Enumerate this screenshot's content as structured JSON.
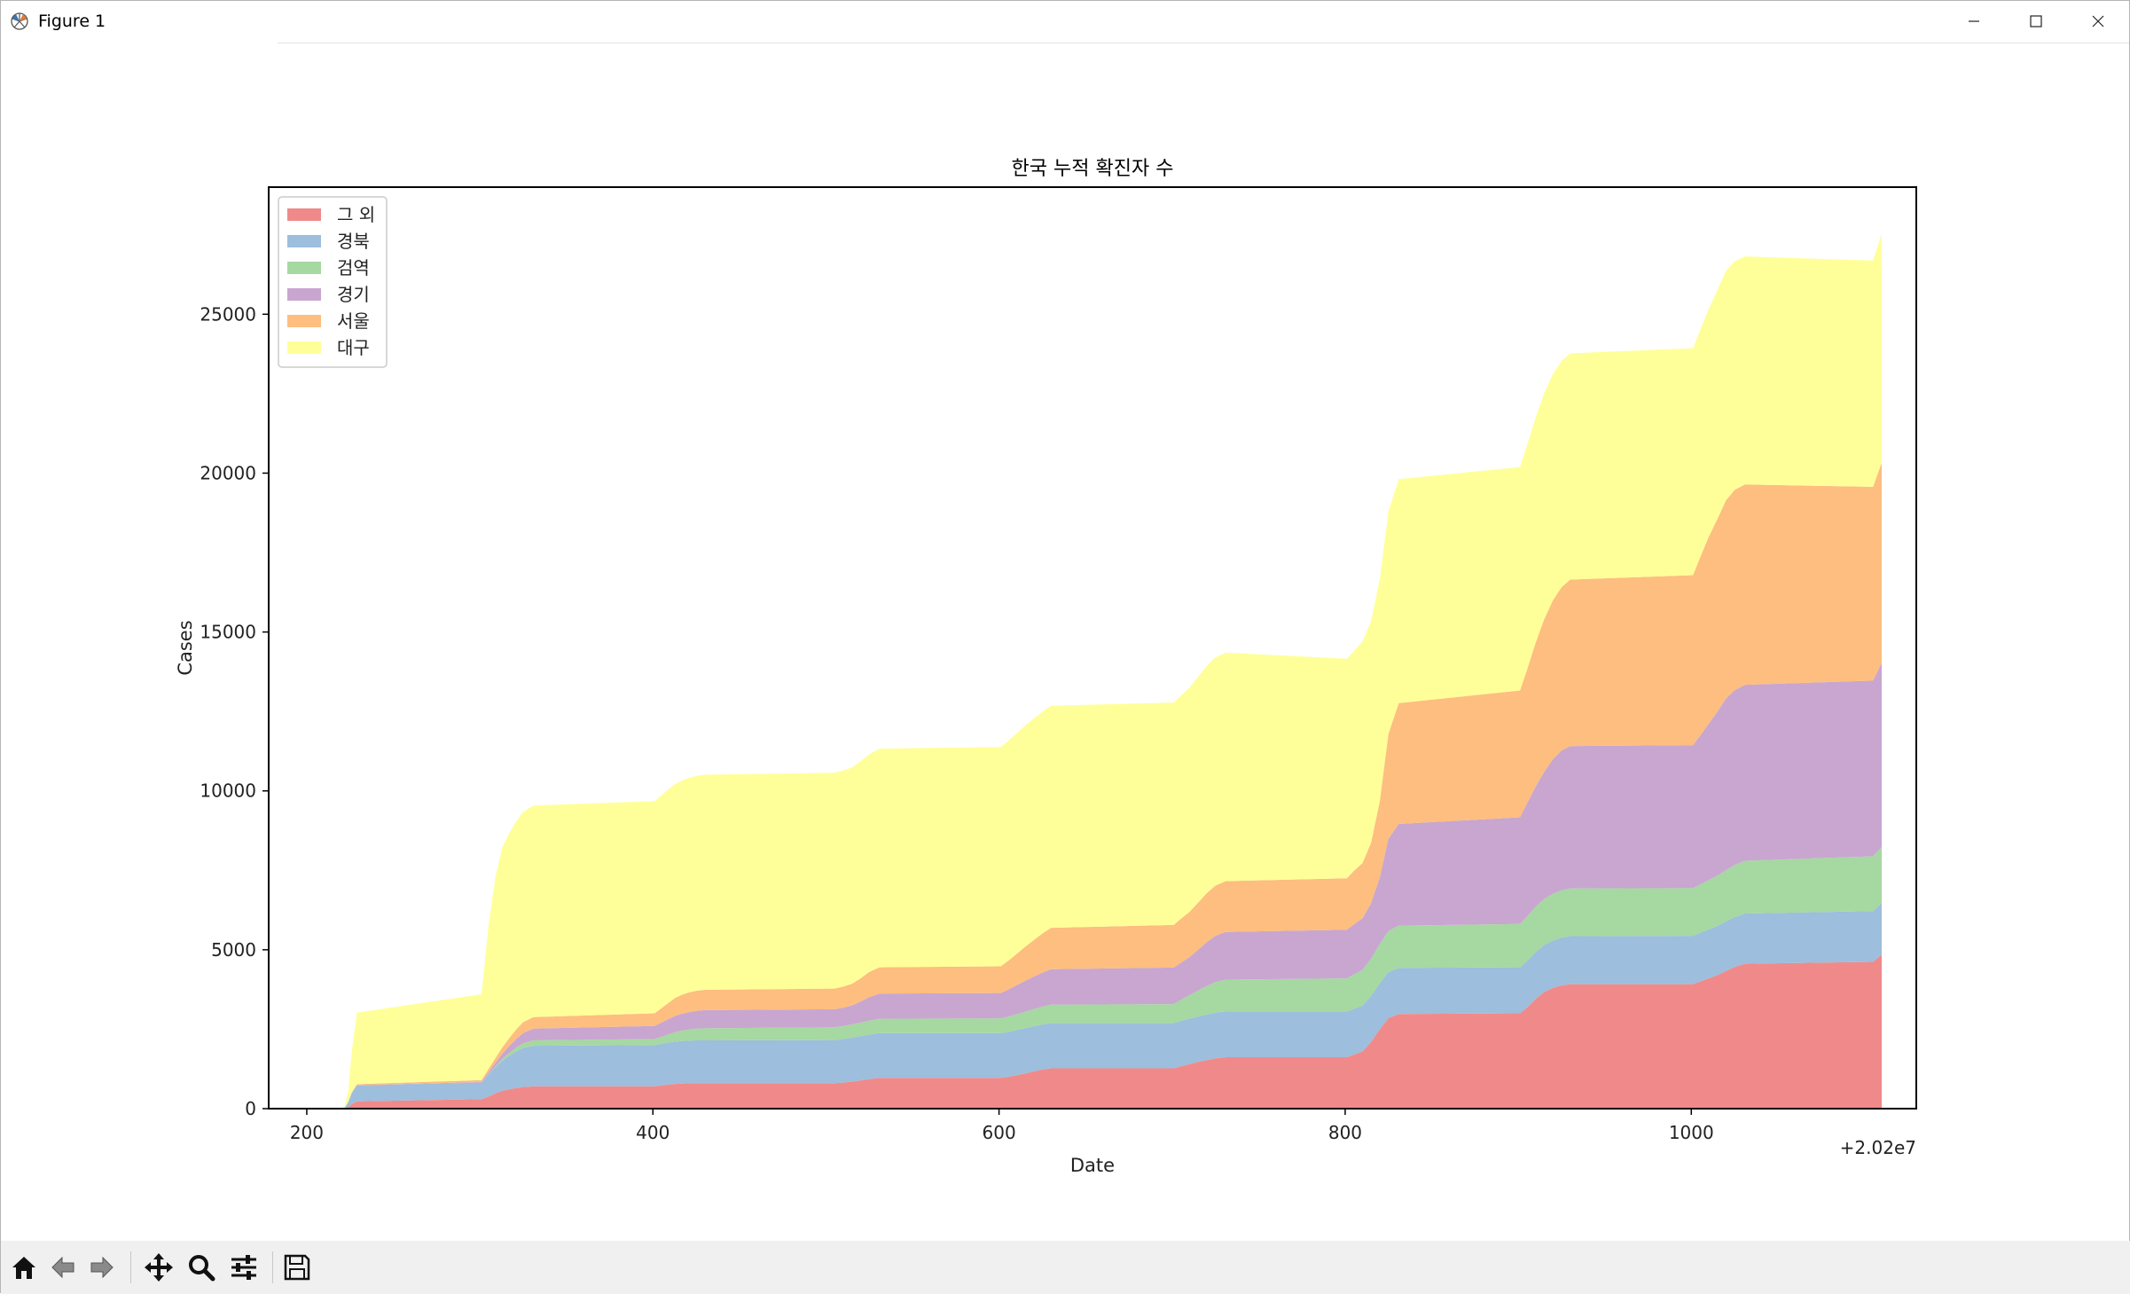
{
  "window": {
    "title": "Figure 1",
    "icons": {
      "app": "matplotlib-icon",
      "minimize": "minimize-icon",
      "maximize": "maximize-icon",
      "close": "close-icon"
    }
  },
  "toolbar": {
    "buttons": [
      {
        "name": "home-button",
        "icon": "home-icon"
      },
      {
        "name": "back-button",
        "icon": "arrow-left-icon"
      },
      {
        "name": "forward-button",
        "icon": "arrow-right-icon"
      },
      {
        "name": "pan-button",
        "icon": "move-icon"
      },
      {
        "name": "zoom-button",
        "icon": "magnifier-icon"
      },
      {
        "name": "configure-subplots-button",
        "icon": "sliders-icon"
      },
      {
        "name": "save-button",
        "icon": "floppy-disk-icon"
      }
    ]
  },
  "chart_data": {
    "type": "area",
    "stacked": true,
    "title": "한국 누적 확진자 수",
    "xlabel": "Date",
    "ylabel": "Cases",
    "x_offset_label": "+2.02e7",
    "xlim": [
      178,
      1130
    ],
    "ylim": [
      0,
      29000
    ],
    "xticks": [
      200,
      400,
      600,
      800,
      1000
    ],
    "xtick_labels": [
      "200",
      "400",
      "600",
      "800",
      "1000"
    ],
    "yticks": [
      0,
      5000,
      10000,
      15000,
      20000,
      25000
    ],
    "ytick_labels": [
      "0",
      "5000",
      "10000",
      "15000",
      "20000",
      "25000"
    ],
    "grid": false,
    "legend_position": "upper-left",
    "x": [
      218,
      220,
      222,
      224,
      226,
      229,
      301,
      305,
      309,
      313,
      317,
      321,
      325,
      331,
      401,
      405,
      409,
      413,
      417,
      421,
      425,
      430,
      505,
      510,
      515,
      520,
      525,
      531,
      601,
      605,
      610,
      615,
      620,
      625,
      630,
      701,
      705,
      710,
      715,
      720,
      725,
      731,
      801,
      805,
      810,
      815,
      820,
      825,
      831,
      901,
      905,
      910,
      915,
      920,
      925,
      930,
      1001,
      1005,
      1010,
      1015,
      1020,
      1025,
      1031,
      1105,
      1110
    ],
    "series": [
      {
        "name": "그 외",
        "color": "#f08a8a",
        "values": [
          0,
          2,
          10,
          60,
          140,
          230,
          300,
          380,
          480,
          560,
          610,
          650,
          680,
          700,
          700,
          730,
          760,
          780,
          790,
          800,
          800,
          800,
          800,
          820,
          850,
          890,
          930,
          970,
          970,
          1000,
          1050,
          1110,
          1170,
          1230,
          1270,
          1270,
          1330,
          1400,
          1470,
          1530,
          1580,
          1620,
          1620,
          1700,
          1800,
          2100,
          2500,
          2850,
          2980,
          3000,
          3180,
          3450,
          3670,
          3800,
          3880,
          3920,
          3920,
          4000,
          4100,
          4200,
          4330,
          4460,
          4560,
          4620,
          4850
        ]
      },
      {
        "name": "경북",
        "color": "#9dbedc",
        "values": [
          0,
          3,
          20,
          150,
          350,
          500,
          520,
          700,
          820,
          950,
          1050,
          1150,
          1230,
          1280,
          1300,
          1310,
          1320,
          1330,
          1340,
          1340,
          1350,
          1350,
          1360,
          1370,
          1380,
          1390,
          1400,
          1410,
          1410,
          1410,
          1420,
          1420,
          1420,
          1420,
          1420,
          1420,
          1430,
          1430,
          1430,
          1430,
          1440,
          1440,
          1440,
          1440,
          1440,
          1450,
          1450,
          1450,
          1450,
          1450,
          1460,
          1470,
          1480,
          1490,
          1500,
          1510,
          1520,
          1530,
          1540,
          1550,
          1560,
          1570,
          1580,
          1600,
          1620
        ]
      },
      {
        "name": "검역",
        "color": "#a6d8a1",
        "values": [
          0,
          0,
          0,
          0,
          0,
          0,
          0,
          10,
          30,
          60,
          90,
          120,
          150,
          170,
          190,
          220,
          260,
          300,
          330,
          350,
          370,
          380,
          400,
          410,
          420,
          430,
          440,
          450,
          460,
          480,
          500,
          520,
          540,
          560,
          580,
          600,
          660,
          740,
          820,
          900,
          960,
          1000,
          1040,
          1080,
          1120,
          1170,
          1230,
          1290,
          1330,
          1360,
          1400,
          1430,
          1450,
          1470,
          1490,
          1500,
          1500,
          1520,
          1550,
          1580,
          1610,
          1640,
          1660,
          1720,
          1760
        ]
      },
      {
        "name": "경기",
        "color": "#c8a6d0",
        "values": [
          0,
          0,
          0,
          0,
          5,
          10,
          20,
          60,
          110,
          160,
          220,
          270,
          320,
          370,
          410,
          450,
          480,
          510,
          530,
          550,
          560,
          570,
          570,
          580,
          600,
          660,
          740,
          790,
          800,
          850,
          910,
          970,
          1020,
          1070,
          1120,
          1150,
          1170,
          1200,
          1280,
          1380,
          1460,
          1500,
          1530,
          1580,
          1630,
          1750,
          2100,
          2900,
          3200,
          3360,
          3560,
          3780,
          4000,
          4230,
          4400,
          4480,
          4500,
          4680,
          4920,
          5160,
          5400,
          5500,
          5540,
          5530,
          5800
        ]
      },
      {
        "name": "서울",
        "color": "#fdbe7f",
        "values": [
          0,
          0,
          0,
          5,
          15,
          30,
          60,
          100,
          150,
          200,
          250,
          300,
          340,
          360,
          400,
          450,
          510,
          570,
          600,
          620,
          630,
          640,
          650,
          660,
          680,
          730,
          790,
          830,
          840,
          900,
          980,
          1070,
          1150,
          1230,
          1300,
          1340,
          1380,
          1420,
          1480,
          1540,
          1580,
          1600,
          1620,
          1680,
          1740,
          1900,
          2400,
          3300,
          3800,
          3990,
          4200,
          4520,
          4800,
          5000,
          5140,
          5240,
          5350,
          5600,
          5880,
          6060,
          6240,
          6300,
          6300,
          6100,
          6300
        ]
      },
      {
        "name": "대구",
        "color": "#ffff99",
        "values": [
          0,
          0,
          50,
          350,
          1300,
          2250,
          2700,
          4500,
          5700,
          6300,
          6450,
          6550,
          6620,
          6660,
          6680,
          6700,
          6720,
          6730,
          6740,
          6750,
          6760,
          6770,
          6790,
          6800,
          6810,
          6830,
          6850,
          6880,
          6900,
          6920,
          6940,
          6960,
          6970,
          6980,
          6990,
          7000,
          7020,
          7060,
          7110,
          7150,
          7180,
          7190,
          6910,
          6920,
          6970,
          6980,
          6990,
          7000,
          7050,
          7030,
          7060,
          7090,
          7120,
          7120,
          7120,
          7120,
          7140,
          7150,
          7170,
          7200,
          7220,
          7200,
          7180,
          7120,
          7200
        ]
      }
    ]
  }
}
